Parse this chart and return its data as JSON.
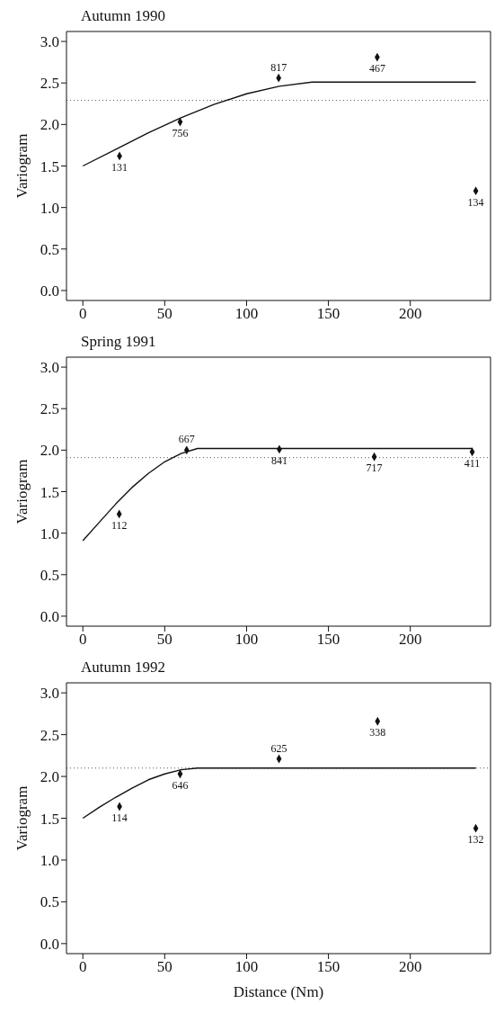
{
  "chart_data": [
    {
      "type": "scatter",
      "title": "Autumn 1990",
      "ylabel": "Variogram",
      "xlim": [
        -10,
        249
      ],
      "ylim": [
        -0.12,
        3.12
      ],
      "xticks": [
        0,
        50,
        100,
        150,
        200
      ],
      "yticks": [
        {
          "value": 0,
          "label": "0.0"
        },
        {
          "value": 0.5,
          "label": "0.5"
        },
        {
          "value": 1,
          "label": "1.0"
        },
        {
          "value": 1.5,
          "label": "1.5"
        },
        {
          "value": 2,
          "label": "2.0"
        },
        {
          "value": 2.5,
          "label": "2.5"
        },
        {
          "value": 3,
          "label": "3.0"
        }
      ],
      "grid": false,
      "legend": false,
      "series": [
        {
          "type": "scatter",
          "marker": "diamond",
          "color": "#111111",
          "x": [
            22.4,
            59.4,
            119.6,
            179.8,
            240
          ],
          "values": [
            1.62,
            2.03,
            2.56,
            2.81,
            1.2
          ]
        },
        {
          "type": "line",
          "marker": "none",
          "line_style": "solid",
          "color": "#111111",
          "x": [
            0,
            20,
            40,
            60,
            80,
            100,
            120,
            140,
            148,
            240
          ],
          "values": [
            1.5,
            1.7,
            1.9,
            2.08,
            2.24,
            2.37,
            2.46,
            2.51,
            2.51,
            2.51
          ]
        }
      ],
      "annotations": [
        {
          "text": "131",
          "x": 22.4,
          "y": 1.62
        },
        {
          "text": "756",
          "x": 59.4,
          "y": 2.03
        },
        {
          "text": "817",
          "x": 119.6,
          "y": 2.56
        },
        {
          "text": "467",
          "x": 179.8,
          "y": 2.81
        },
        {
          "text": "134",
          "x": 240,
          "y": 1.2
        }
      ],
      "ref_lines": [
        {
          "axis": "y",
          "value": 2.29,
          "color": "#555555",
          "line_style": "dotted"
        }
      ]
    },
    {
      "type": "scatter",
      "title": "Spring 1991",
      "ylabel": "Variogram",
      "xlim": [
        -10,
        249
      ],
      "ylim": [
        -0.12,
        3.12
      ],
      "xticks": [
        0,
        50,
        100,
        150,
        200
      ],
      "yticks": [
        {
          "value": 0,
          "label": "0.0"
        },
        {
          "value": 0.5,
          "label": "0.5"
        },
        {
          "value": 1,
          "label": "1.0"
        },
        {
          "value": 1.5,
          "label": "1.5"
        },
        {
          "value": 2,
          "label": "2.0"
        },
        {
          "value": 2.5,
          "label": "2.5"
        },
        {
          "value": 3,
          "label": "3.0"
        }
      ],
      "grid": false,
      "legend": false,
      "series": [
        {
          "type": "scatter",
          "marker": "diamond",
          "color": "#111111",
          "x": [
            22.2,
            63.4,
            120,
            178,
            237.8
          ],
          "values": [
            1.23,
            2.0,
            2.01,
            1.92,
            1.98
          ]
        },
        {
          "type": "line",
          "marker": "none",
          "line_style": "solid",
          "color": "#111111",
          "x": [
            0,
            10,
            20,
            30,
            40,
            50,
            60,
            70,
            74,
            238
          ],
          "values": [
            0.91,
            1.13,
            1.35,
            1.55,
            1.72,
            1.86,
            1.96,
            2.02,
            2.02,
            2.02
          ]
        }
      ],
      "annotations": [
        {
          "text": "112",
          "x": 22.2,
          "y": 1.23
        },
        {
          "text": "667",
          "x": 63.4,
          "y": 2.0
        },
        {
          "text": "841",
          "x": 120,
          "y": 2.01
        },
        {
          "text": "717",
          "x": 178,
          "y": 1.92
        },
        {
          "text": "411",
          "x": 237.8,
          "y": 1.98
        }
      ],
      "ref_lines": [
        {
          "axis": "y",
          "value": 1.91,
          "color": "#555555",
          "line_style": "dotted"
        }
      ]
    },
    {
      "type": "scatter",
      "title": "Autumn 1992",
      "ylabel": "Variogram",
      "xlabel": "Distance (Nm)",
      "xlim": [
        -10,
        249
      ],
      "ylim": [
        -0.12,
        3.12
      ],
      "xticks": [
        0,
        50,
        100,
        150,
        200
      ],
      "yticks": [
        {
          "value": 0,
          "label": "0.0"
        },
        {
          "value": 0.5,
          "label": "0.5"
        },
        {
          "value": 1,
          "label": "1.0"
        },
        {
          "value": 1.5,
          "label": "1.5"
        },
        {
          "value": 2,
          "label": "2.0"
        },
        {
          "value": 2.5,
          "label": "2.5"
        },
        {
          "value": 3,
          "label": "3.0"
        }
      ],
      "grid": false,
      "legend": false,
      "series": [
        {
          "type": "scatter",
          "marker": "diamond",
          "color": "#111111",
          "x": [
            22.4,
            59.4,
            119.8,
            180,
            240
          ],
          "values": [
            1.64,
            2.03,
            2.21,
            2.66,
            1.38
          ]
        },
        {
          "type": "line",
          "marker": "none",
          "line_style": "solid",
          "color": "#111111",
          "x": [
            0,
            10,
            20,
            30,
            40,
            50,
            60,
            70,
            240
          ],
          "values": [
            1.5,
            1.63,
            1.75,
            1.86,
            1.96,
            2.03,
            2.08,
            2.1,
            2.1
          ]
        }
      ],
      "annotations": [
        {
          "text": "114",
          "x": 22.4,
          "y": 1.64
        },
        {
          "text": "646",
          "x": 59.4,
          "y": 2.03
        },
        {
          "text": "625",
          "x": 119.8,
          "y": 2.21
        },
        {
          "text": "338",
          "x": 180,
          "y": 2.66
        },
        {
          "text": "132",
          "x": 240,
          "y": 1.38
        }
      ],
      "ref_lines": [
        {
          "axis": "y",
          "value": 2.1,
          "color": "#555555",
          "line_style": "dotted"
        }
      ]
    }
  ]
}
